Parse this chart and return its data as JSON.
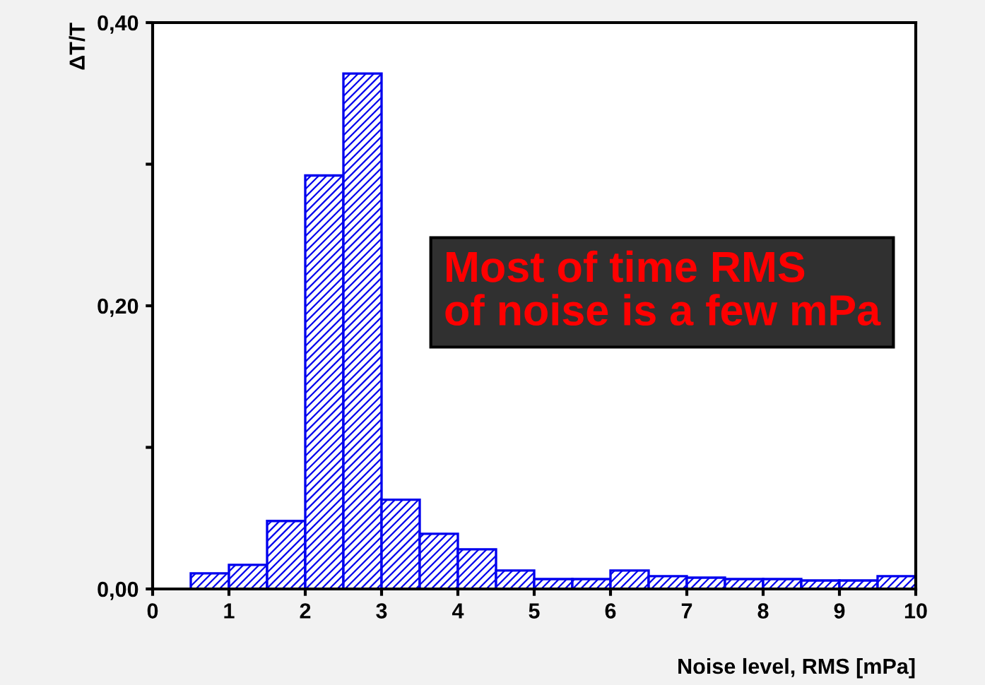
{
  "chart_data": {
    "type": "histogram",
    "bins": [
      0.5,
      1,
      1.5,
      2,
      2.5,
      3,
      3.5,
      4,
      4.5,
      5,
      5.5,
      6,
      6.5,
      7,
      7.5,
      8,
      8.5,
      9,
      9.5,
      10
    ],
    "values": [
      0.011,
      0.017,
      0.048,
      0.292,
      0.364,
      0.063,
      0.039,
      0.028,
      0.013,
      0.007,
      0.007,
      0.013,
      0.009,
      0.008,
      0.007,
      0.007,
      0.006,
      0.006,
      0.009
    ],
    "color": "#0000ee",
    "xlabel": "Noise level, RMS [mPa]",
    "ylabel": "ΔT/T",
    "xlim": [
      0,
      10
    ],
    "ylim": [
      0,
      0.4
    ],
    "xticks": [
      0,
      1,
      2,
      3,
      4,
      5,
      6,
      7,
      8,
      9,
      10
    ],
    "yticks": [
      {
        "value": 0,
        "label": "0,00"
      },
      {
        "value": 0.1,
        "label": null
      },
      {
        "value": 0.2,
        "label": "0,20"
      },
      {
        "value": 0.3,
        "label": null
      },
      {
        "value": 0.4,
        "label": "0,40"
      }
    ],
    "annotations": [
      "Most of time RMS\nof noise is a few mPa"
    ],
    "grid": false,
    "legend": false
  }
}
